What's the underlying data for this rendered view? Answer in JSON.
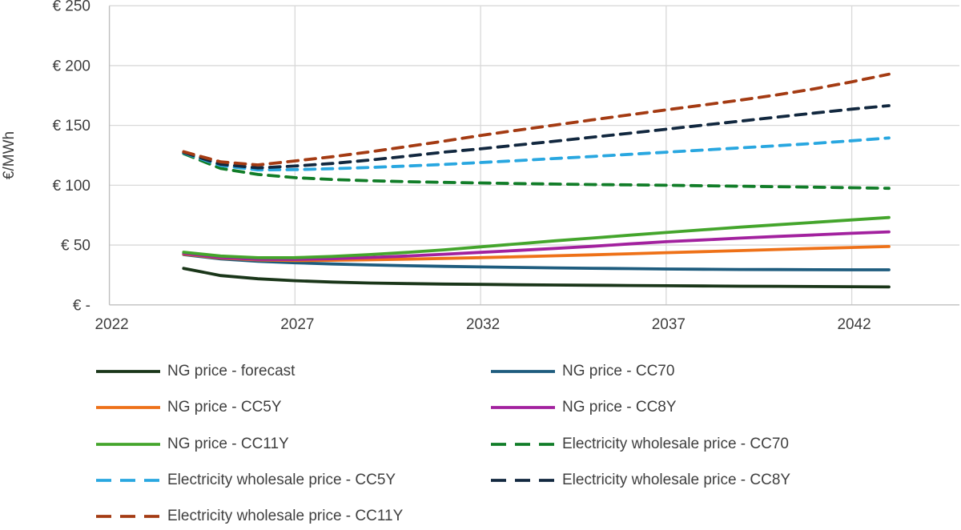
{
  "figure": {
    "background": "#ffffff",
    "text_color": "#3f3f3f",
    "gridline_color": "#d9d9d9",
    "axis_line_color": "#bfbfbf"
  },
  "y_axis": {
    "title": "€/MWh",
    "tick_labels": [
      "€ 250",
      "€ 200",
      "€ 150",
      "€ 100",
      "€ 50",
      "€ -"
    ],
    "tick_values": [
      250,
      200,
      150,
      100,
      50,
      0
    ]
  },
  "x_axis": {
    "tick_labels": [
      "2022",
      "2027",
      "2032",
      "2037",
      "2042"
    ],
    "tick_values": [
      2022,
      2027,
      2032,
      2037,
      2042
    ]
  },
  "chart_data": {
    "type": "line",
    "title": "",
    "xlabel": "",
    "ylabel": "€/MWh",
    "xlim": [
      2022,
      2044.9
    ],
    "ylim": [
      0,
      250
    ],
    "grid": true,
    "legend_position": "bottom",
    "x": [
      2024,
      2025,
      2026,
      2027,
      2028,
      2029,
      2030,
      2031,
      2032,
      2033,
      2034,
      2035,
      2036,
      2037,
      2038,
      2039,
      2040,
      2041,
      2042,
      2043
    ],
    "series": [
      {
        "name": "NG price - forecast",
        "slug": "ng-forecast",
        "color": "#1a3619",
        "style": "solid",
        "values": [
          30.5,
          24.5,
          21.8,
          20.2,
          19.1,
          18.3,
          17.8,
          17.4,
          17.1,
          16.8,
          16.6,
          16.4,
          16.2,
          16.0,
          15.8,
          15.6,
          15.5,
          15.3,
          15.2,
          15.0
        ]
      },
      {
        "name": "NG price - CC70",
        "slug": "ng-cc70",
        "color": "#1e5c7e",
        "style": "solid",
        "values": [
          42.0,
          38.5,
          36.5,
          35.2,
          34.2,
          33.4,
          32.7,
          32.2,
          31.7,
          31.3,
          30.9,
          30.6,
          30.3,
          30.0,
          29.8,
          29.6,
          29.5,
          29.4,
          29.3,
          29.3
        ]
      },
      {
        "name": "NG price - CC5Y",
        "slug": "ng-cc5y",
        "color": "#ee7118",
        "style": "solid",
        "values": [
          42.5,
          39.2,
          37.6,
          37.1,
          37.3,
          37.7,
          38.2,
          38.8,
          39.5,
          40.2,
          41.0,
          41.8,
          42.7,
          43.6,
          44.5,
          45.4,
          46.3,
          47.2,
          48.0,
          48.8
        ]
      },
      {
        "name": "NG price - CC8Y",
        "slug": "ng-cc8y",
        "color": "#a2219e",
        "style": "solid",
        "values": [
          43.0,
          39.6,
          38.1,
          38.0,
          38.6,
          39.6,
          40.8,
          42.3,
          43.9,
          45.5,
          47.2,
          48.9,
          50.9,
          52.8,
          54.3,
          55.8,
          57.2,
          58.5,
          59.8,
          61.0
        ]
      },
      {
        "name": "NG price - CC11Y",
        "slug": "ng-cc11y",
        "color": "#44a52c",
        "style": "solid",
        "values": [
          44.0,
          40.8,
          39.4,
          39.5,
          40.5,
          42.0,
          43.8,
          46.0,
          48.5,
          51.0,
          53.5,
          55.8,
          58.2,
          60.5,
          62.8,
          65.0,
          67.0,
          69.0,
          71.0,
          73.0
        ]
      },
      {
        "name": "Electricity wholesale price - CC70",
        "slug": "el-cc70",
        "color": "#117d28",
        "style": "dashed",
        "values": [
          126.5,
          114.0,
          109.0,
          106.3,
          104.8,
          103.8,
          103.0,
          102.4,
          101.9,
          101.4,
          101.0,
          100.6,
          100.3,
          100.0,
          99.6,
          99.2,
          98.8,
          98.4,
          97.9,
          97.4
        ]
      },
      {
        "name": "Electricity wholesale price - CC5Y",
        "slug": "el-cc5y",
        "color": "#29a7e0",
        "style": "dashed",
        "values": [
          127.0,
          116.5,
          112.8,
          113.0,
          113.8,
          114.8,
          116.0,
          117.4,
          119.0,
          120.6,
          122.3,
          124.0,
          125.8,
          127.6,
          129.4,
          131.2,
          133.0,
          135.0,
          137.2,
          139.5
        ]
      },
      {
        "name": "Electricity wholesale price - CC8Y",
        "slug": "el-cc8y",
        "color": "#12283f",
        "style": "dashed",
        "values": [
          127.5,
          117.5,
          114.5,
          116.0,
          118.2,
          121.0,
          124.2,
          127.6,
          130.4,
          133.6,
          136.8,
          140.1,
          143.4,
          146.8,
          150.2,
          153.6,
          157.0,
          160.3,
          163.6,
          166.5
        ]
      },
      {
        "name": "Electricity wholesale price - CC11Y",
        "slug": "el-cc11y",
        "color": "#a43b13",
        "style": "dashed",
        "values": [
          128.0,
          119.5,
          117.0,
          120.3,
          123.8,
          127.8,
          132.2,
          136.8,
          141.6,
          146.0,
          150.3,
          154.6,
          158.8,
          163.0,
          167.0,
          171.2,
          175.6,
          180.6,
          186.4,
          192.8
        ]
      }
    ]
  }
}
